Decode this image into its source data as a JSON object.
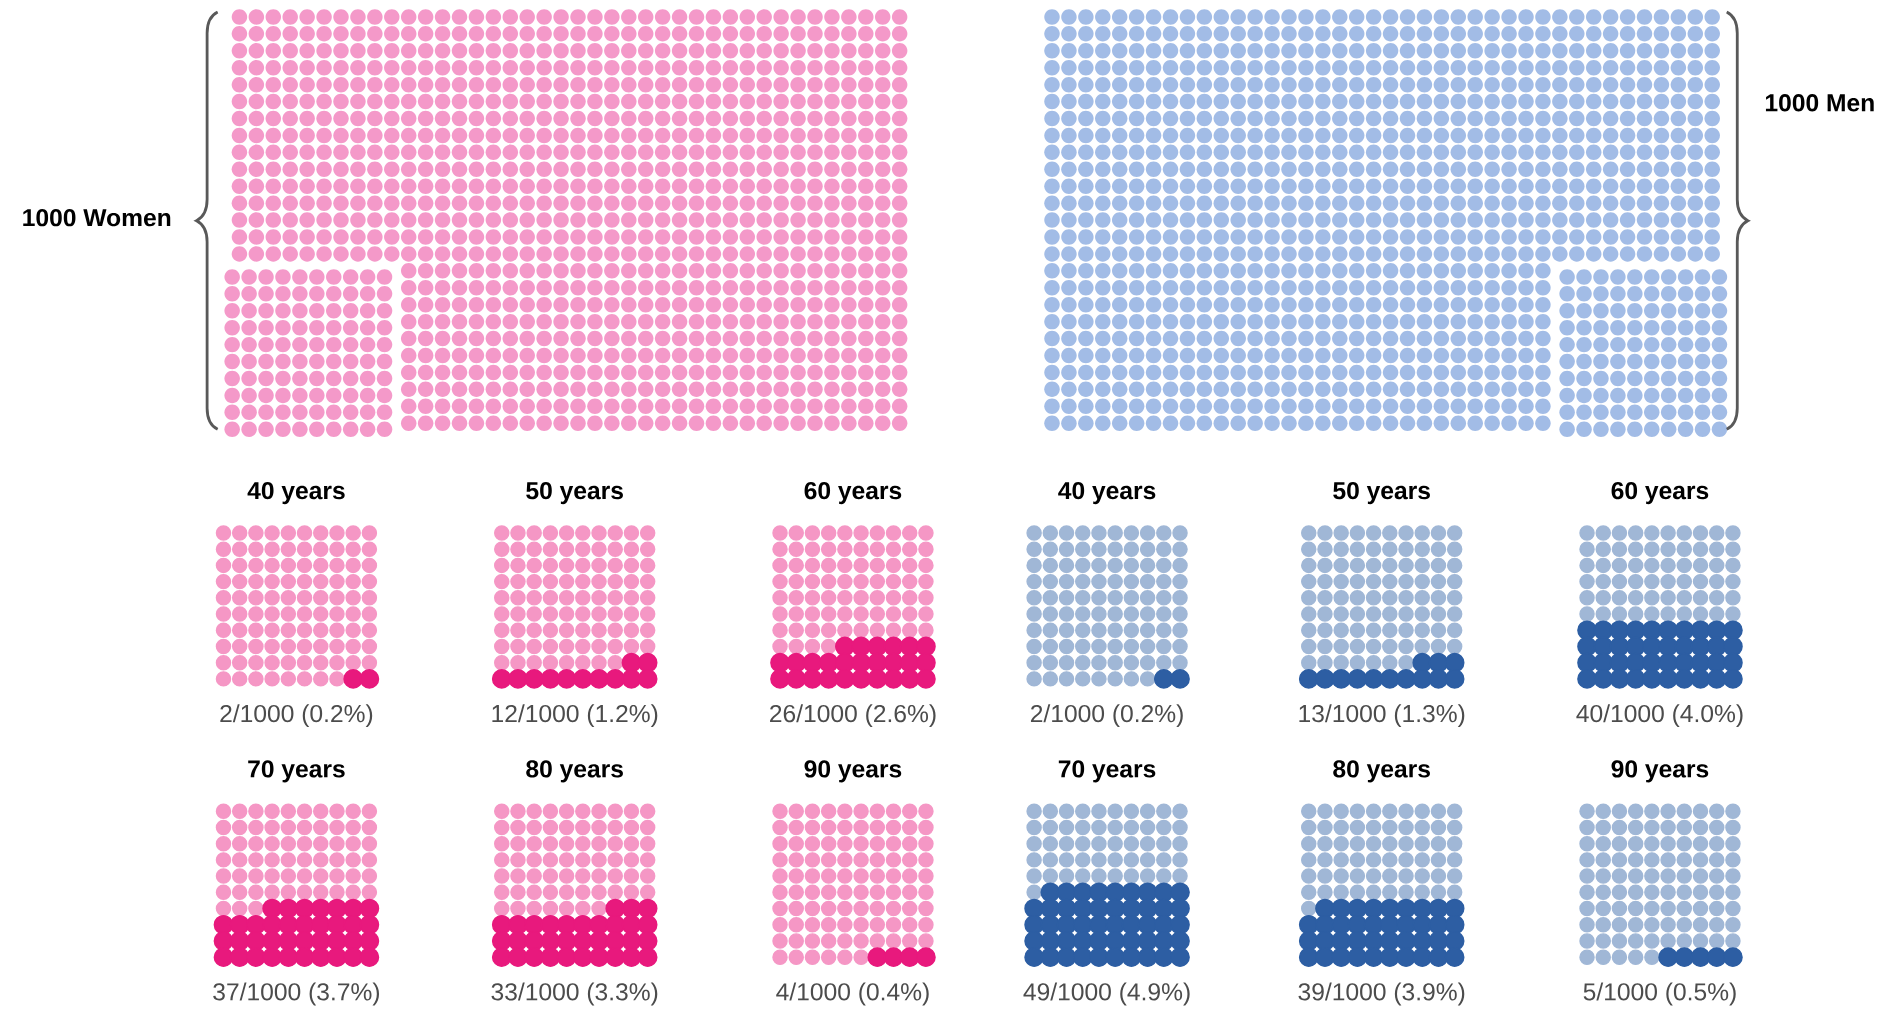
{
  "chart_data": [
    {
      "type": "other",
      "categories": [
        "1000 Women",
        "1000 Men"
      ],
      "colors": [
        "#f499c9",
        "#a2bce6"
      ]
    },
    {
      "type": "other",
      "categories": [
        "40 years",
        "50 years",
        "60 years"
      ],
      "values": [
        2,
        12,
        26
      ],
      "color": "#e8197d",
      "value_labels": [
        "2/1000 (0.2%)",
        "12/1000 (1.2%)",
        "26/1000 (2.6%)"
      ]
    },
    {
      "type": "other",
      "categories": [
        "40 years",
        "50 years",
        "60 years"
      ],
      "values": [
        2,
        13,
        40
      ],
      "color": "#2d5ea3",
      "value_labels": [
        "2/1000 (0.2%)",
        "13/1000 (1.3%)",
        "40/1000 (4.0%)"
      ]
    },
    {
      "type": "other",
      "categories": [
        "70 years",
        "80 years",
        "90 years"
      ],
      "values": [
        37,
        33,
        4
      ],
      "color": "#e8197d",
      "value_labels": [
        "37/1000 (3.7%)",
        "33/1000 (3.3%)",
        "4/1000 (0.4%)"
      ]
    },
    {
      "type": "other",
      "categories": [
        "70 years",
        "80 years",
        "90 years"
      ],
      "values": [
        49,
        39,
        5
      ],
      "color": "#2d5ea3",
      "value_labels": [
        "49/1000 (4.9%)",
        "39/1000 (3.9%)",
        "5/1000 (0.5%)"
      ]
    }
  ]
}
